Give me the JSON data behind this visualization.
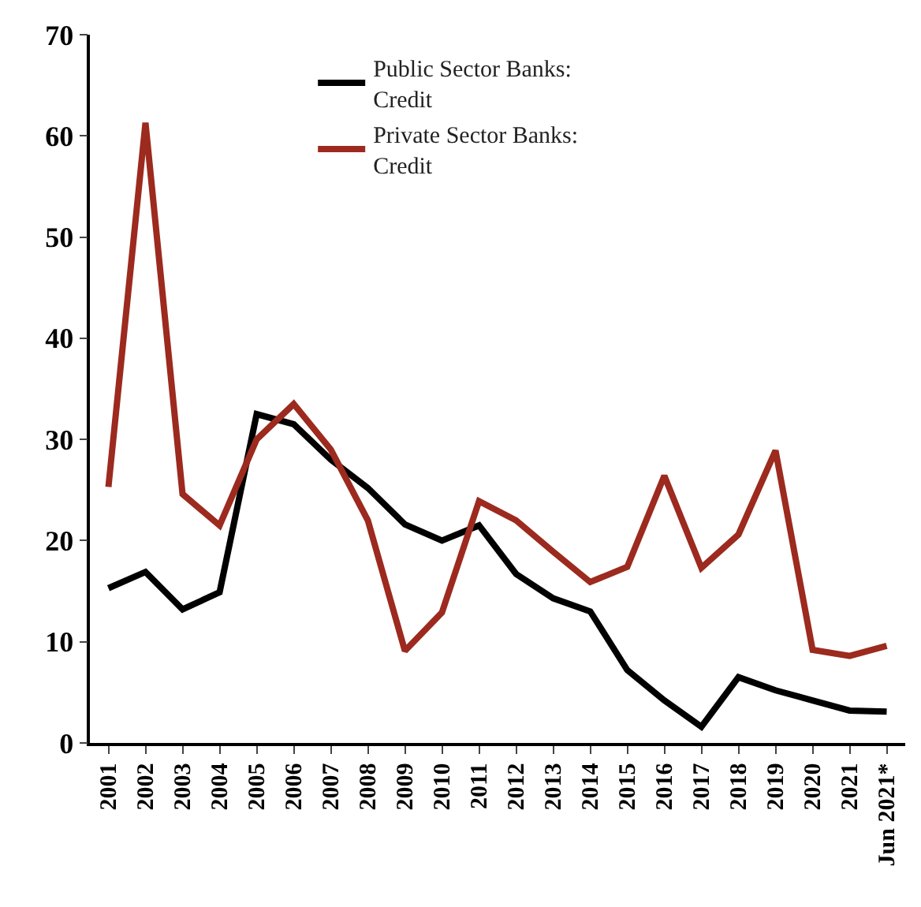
{
  "chart_data": {
    "type": "line",
    "categories": [
      "2001",
      "2002",
      "2003",
      "2004",
      "2005",
      "2006",
      "2007",
      "2008",
      "2009",
      "2010",
      "2011",
      "2012",
      "2013",
      "2014",
      "2015",
      "2016",
      "2017",
      "2018",
      "2019",
      "2020",
      "2021",
      "Jun 2021*"
    ],
    "series": [
      {
        "name": "Public Sector Banks: Credit",
        "color": "#000000",
        "values": [
          15.3,
          16.9,
          13.2,
          14.9,
          32.5,
          31.5,
          28,
          25.2,
          21.6,
          20,
          21.5,
          16.7,
          14.3,
          13,
          7.2,
          4.2,
          1.6,
          6.5,
          5.2,
          4.2,
          3.2,
          3.1
        ]
      },
      {
        "name": "Private Sector Banks: Credit",
        "color": "#9c2a1e",
        "values": [
          25.3,
          61.3,
          24.6,
          21.5,
          30,
          33.5,
          29,
          22,
          9.1,
          12.9,
          23.9,
          22,
          18.9,
          15.9,
          17.4,
          26.4,
          17.3,
          20.6,
          28.9,
          9.2,
          8.6,
          9.6
        ]
      }
    ],
    "ylim": [
      0,
      70
    ],
    "yticks": [
      0,
      10,
      20,
      30,
      40,
      50,
      60,
      70
    ],
    "grid": false,
    "legend": "top",
    "marker": "none",
    "line_style": "solid"
  }
}
